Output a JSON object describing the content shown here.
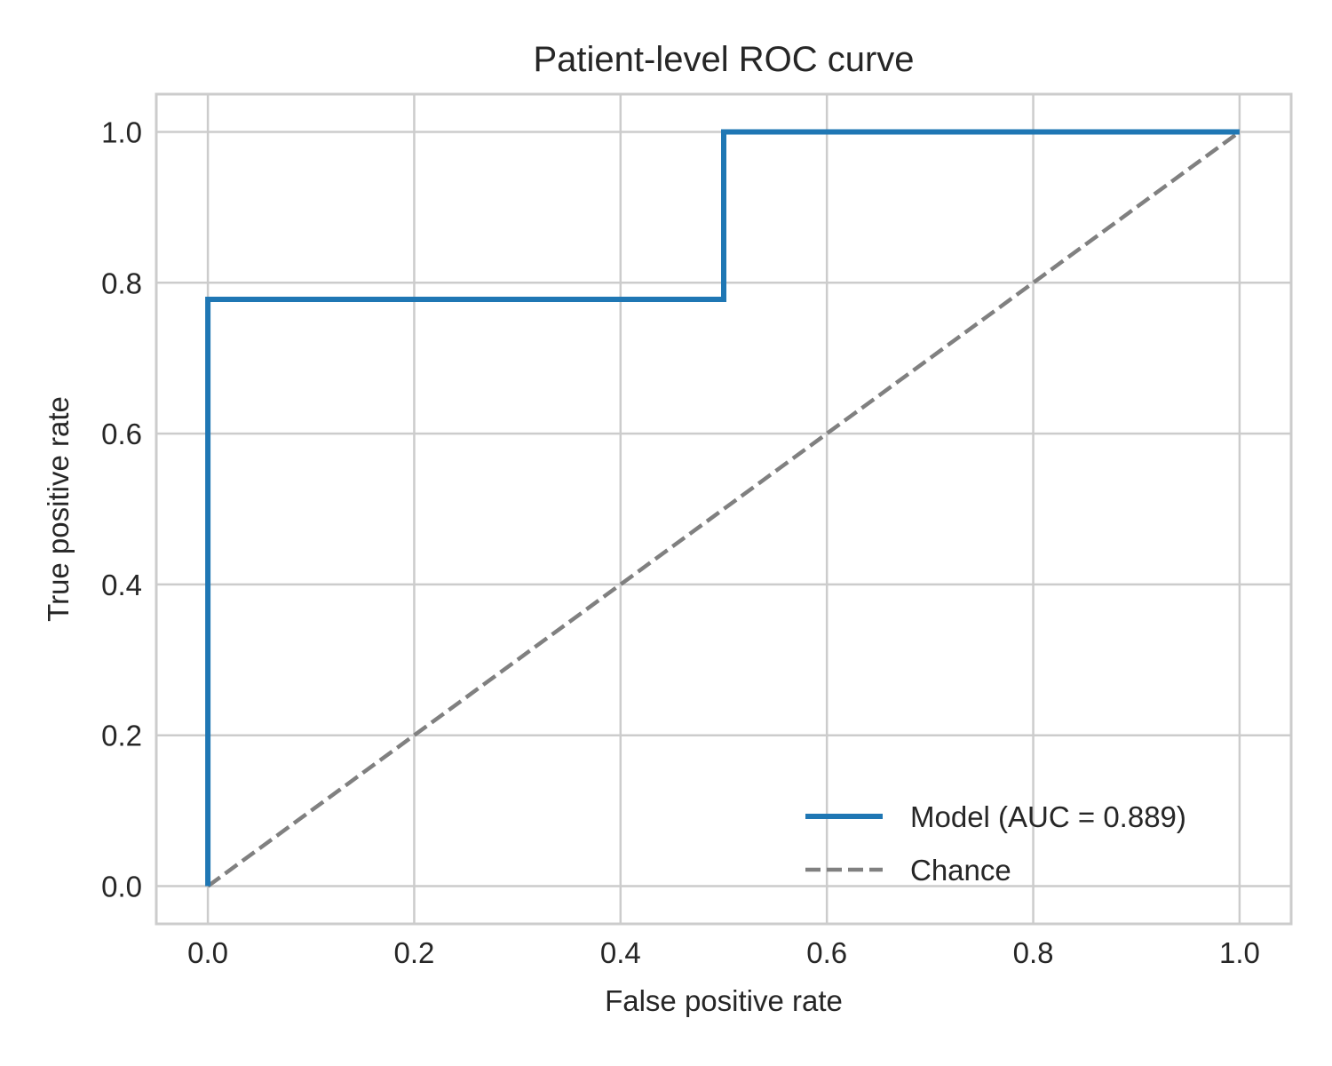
{
  "chart_data": {
    "type": "line",
    "title": "Patient-level ROC curve",
    "xlabel": "False positive rate",
    "ylabel": "True positive rate",
    "xlim": [
      -0.05,
      1.05
    ],
    "ylim": [
      -0.05,
      1.05
    ],
    "x_ticks": [
      0.0,
      0.2,
      0.4,
      0.6,
      0.8,
      1.0
    ],
    "y_ticks": [
      0.0,
      0.2,
      0.4,
      0.6,
      0.8,
      1.0
    ],
    "x_tick_labels": [
      "0.0",
      "0.2",
      "0.4",
      "0.6",
      "0.8",
      "1.0"
    ],
    "y_tick_labels": [
      "0.0",
      "0.2",
      "0.4",
      "0.6",
      "0.8",
      "1.0"
    ],
    "grid": true,
    "legend_position": "lower-right",
    "series": [
      {
        "name": "Model (AUC = 0.889)",
        "color": "#1f77b4",
        "line_style": "solid",
        "x": [
          0.0,
          0.0,
          0.5,
          0.5,
          1.0
        ],
        "y": [
          0.0,
          0.778,
          0.778,
          1.0,
          1.0
        ]
      },
      {
        "name": "Chance",
        "color": "#808080",
        "line_style": "dashed",
        "x": [
          0.0,
          1.0
        ],
        "y": [
          0.0,
          1.0
        ]
      }
    ]
  }
}
